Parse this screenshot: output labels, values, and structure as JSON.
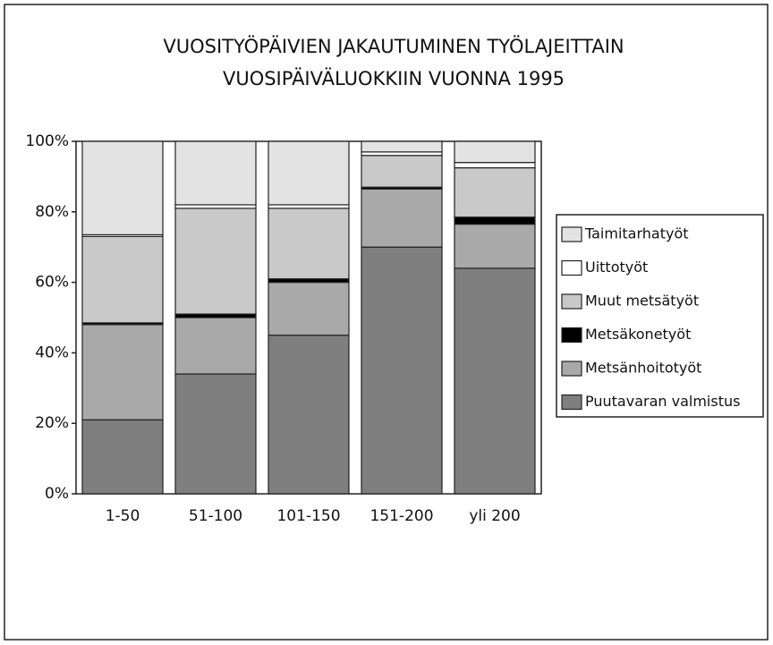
{
  "chart_data": {
    "type": "bar",
    "stacked": true,
    "title": [
      "VUOSITYÖPÄIVIEN JAKAUTUMINEN TYÖLAJEITTAIN",
      "VUOSIPÄIVÄLUOKKIIN VUONNA 1995"
    ],
    "categories": [
      "1-50",
      "51-100",
      "101-150",
      "151-200",
      "yli 200"
    ],
    "series": [
      {
        "name": "Puutavaran valmistus",
        "color": "#7f7f7f",
        "values": [
          21,
          34,
          45,
          70,
          64
        ]
      },
      {
        "name": "Metsänhoitotyöt",
        "color": "#a9a9a9",
        "values": [
          27,
          16,
          15,
          16.5,
          12.5
        ]
      },
      {
        "name": "Metsäkonetyöt",
        "color": "#000000",
        "values": [
          0.5,
          1,
          1,
          0.5,
          2
        ]
      },
      {
        "name": "Muut metsätyöt",
        "color": "#c9c9c9",
        "values": [
          24.5,
          30,
          20,
          9,
          14
        ]
      },
      {
        "name": "Uittotyöt",
        "color": "#ffffff",
        "values": [
          0.5,
          1,
          1,
          1,
          1.5
        ]
      },
      {
        "name": "Taimitarhatyöt",
        "color": "#e3e3e3",
        "values": [
          26.5,
          18,
          18,
          3,
          6
        ]
      }
    ],
    "ylim": [
      0,
      100
    ],
    "yticks": [
      {
        "value": 0,
        "label": "0%"
      },
      {
        "value": 20,
        "label": "20%"
      },
      {
        "value": 40,
        "label": "40%"
      },
      {
        "value": 60,
        "label": "60%"
      },
      {
        "value": 80,
        "label": "80%"
      },
      {
        "value": 100,
        "label": "100%"
      }
    ],
    "legend": "right"
  }
}
